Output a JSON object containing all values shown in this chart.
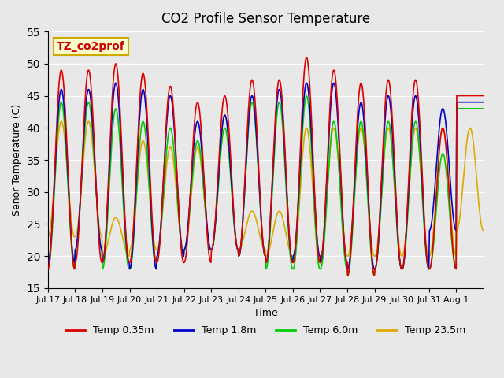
{
  "title": "CO2 Profile Sensor Temperature",
  "xlabel": "Time",
  "ylabel": "Senor Temperature (C)",
  "ylim": [
    15,
    55
  ],
  "yticks": [
    15,
    20,
    25,
    30,
    35,
    40,
    45,
    50,
    55
  ],
  "annotation_text": "TZ_co2prof",
  "annotation_color": "#cc0000",
  "annotation_bg": "#ffffcc",
  "annotation_border": "#ccaa00",
  "line_colors": [
    "#dd0000",
    "#0000cc",
    "#00cc00",
    "#ddaa00"
  ],
  "line_labels": [
    "Temp 0.35m",
    "Temp 1.8m",
    "Temp 6.0m",
    "Temp 23.5m"
  ],
  "bg_color": "#e8e8e8",
  "plot_bg_color": "#e8e8e8",
  "xtick_labels": [
    "Jul 17",
    "Jul 18",
    "Jul 19",
    "Jul 20",
    "Jul 21",
    "Jul 22",
    "Jul 23",
    "Jul 24",
    "Jul 25",
    "Jul 26",
    "Jul 27",
    "Jul 28",
    "Jul 29",
    "Jul 30",
    "Jul 31",
    "Aug 1"
  ],
  "n_points_per_day": 48,
  "figsize": [
    6.4,
    4.8
  ],
  "dpi": 100,
  "red_maxes": [
    49,
    49,
    50,
    48.5,
    46.5,
    44,
    45,
    47.5,
    47.5,
    51,
    49,
    47,
    47.5,
    47.5,
    40,
    45
  ],
  "blue_maxes": [
    46,
    46,
    47,
    46,
    45,
    41,
    42,
    45,
    46,
    47,
    47,
    44,
    45,
    45,
    43,
    44
  ],
  "green_maxes": [
    44,
    44,
    43,
    41,
    40,
    38,
    40,
    44,
    44,
    45,
    41,
    41,
    41,
    41,
    36,
    43
  ],
  "orange_maxes": [
    41,
    41,
    26,
    38,
    37,
    37,
    42,
    27,
    27,
    40,
    40,
    40,
    40,
    40,
    40,
    40
  ],
  "red_mins": [
    18,
    19,
    19,
    19,
    19,
    19,
    21,
    20,
    19,
    19,
    19,
    17,
    18,
    18,
    18,
    45
  ],
  "blue_mins": [
    19,
    21,
    19,
    18,
    20,
    21,
    21,
    20,
    19,
    20,
    19,
    18,
    18,
    18,
    24,
    44
  ],
  "green_mins": [
    18,
    21,
    18,
    18,
    20,
    21,
    21,
    20,
    18,
    18,
    18,
    17,
    18,
    18,
    18,
    43
  ],
  "orange_mins": [
    23,
    23,
    20,
    21,
    21,
    21,
    21,
    21,
    20,
    19,
    20,
    20,
    20,
    20,
    20,
    24
  ]
}
